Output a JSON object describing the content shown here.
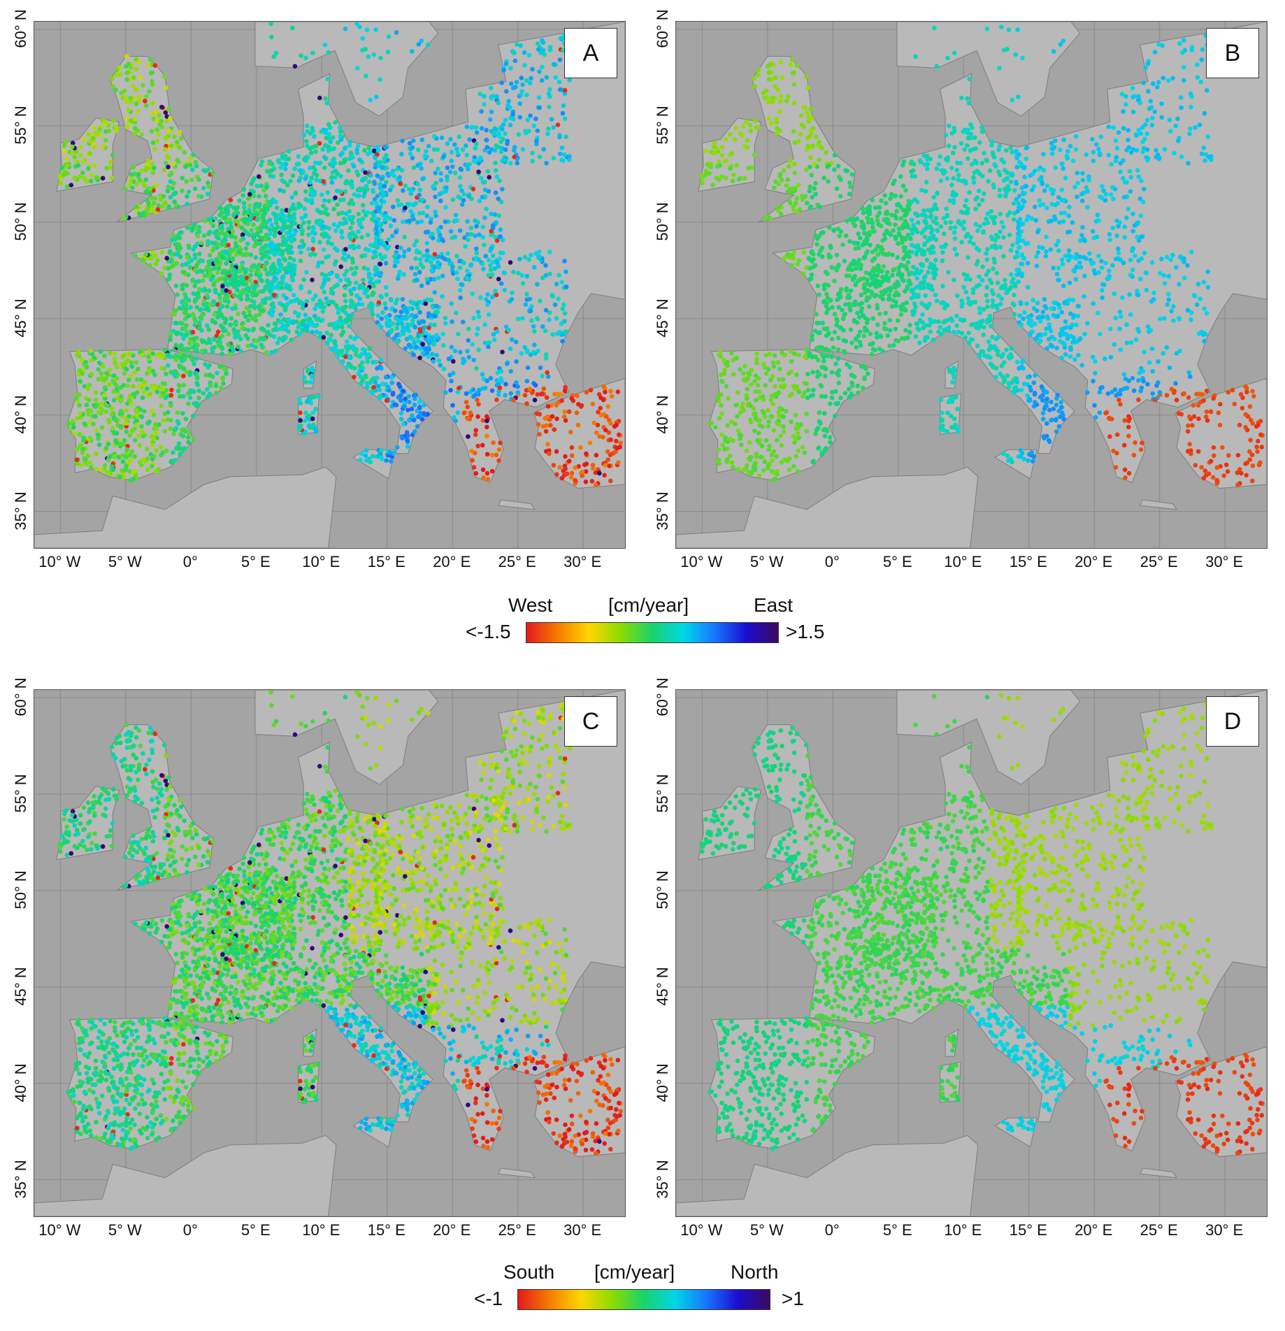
{
  "panels": [
    {
      "letter": "A",
      "component": "east",
      "scheme": "ew"
    },
    {
      "letter": "B",
      "component": "east",
      "scheme": "ew",
      "smooth": true
    },
    {
      "letter": "C",
      "component": "north",
      "scheme": "ns"
    },
    {
      "letter": "D",
      "component": "north",
      "scheme": "ns",
      "smooth": true
    }
  ],
  "lon_ticks": [
    "10° W",
    "5° W",
    "0°",
    "5° E",
    "10° E",
    "15° E",
    "20° E",
    "25° E",
    "30° E"
  ],
  "lat_ticks": [
    "35° N",
    "40° N",
    "45° N",
    "50° N",
    "55° N",
    "60° N"
  ],
  "colorbar_ew": {
    "left_label": "West",
    "unit": "[cm/year]",
    "right_label": "East",
    "min_label": "<-1.5",
    "max_label": ">1.5",
    "colors": [
      "#e41a1c",
      "#f57c00",
      "#ffd600",
      "#8bdc00",
      "#19d36b",
      "#00d6e8",
      "#1874ff",
      "#1b0ccf",
      "#3b0a5e"
    ]
  },
  "colorbar_ns": {
    "left_label": "South",
    "unit": "[cm/year]",
    "right_label": "North",
    "min_label": "<-1",
    "max_label": ">1",
    "colors": [
      "#e41a1c",
      "#f57c00",
      "#ffd600",
      "#8bdc00",
      "#19d36b",
      "#00d6e8",
      "#1874ff",
      "#1b0ccf",
      "#3b0a5e"
    ]
  },
  "colors": {
    "sea": "#a4a4a4",
    "land": "#b9b9b9",
    "border": "#555555"
  }
}
